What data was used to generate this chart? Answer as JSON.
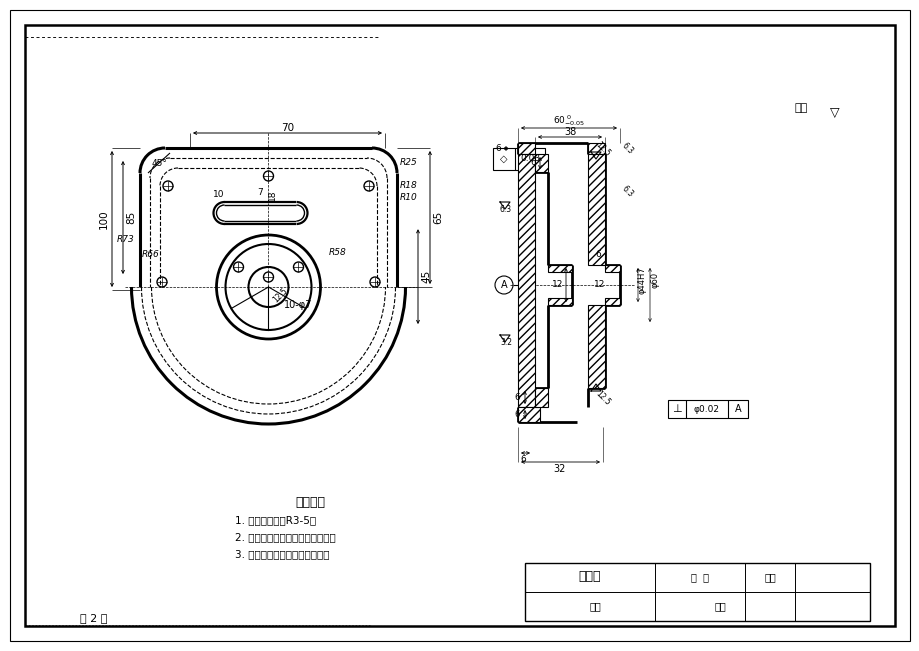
{
  "bg_color": "#ffffff",
  "page_num_text": "第 2 页",
  "notes_title": "技术要求",
  "note1": "1. 未注铸造圆角R3-5。",
  "note2": "2. 铸件不能有气孔，砂眼等缺陷。",
  "note3": "3. 粗加工后进行人工时效处理。",
  "tb_name": "零件图",
  "tb_ratio": "比  例",
  "tb_material": "材料",
  "tb_draw": "制图",
  "tb_check": "审核",
  "qi_yu": "其余"
}
